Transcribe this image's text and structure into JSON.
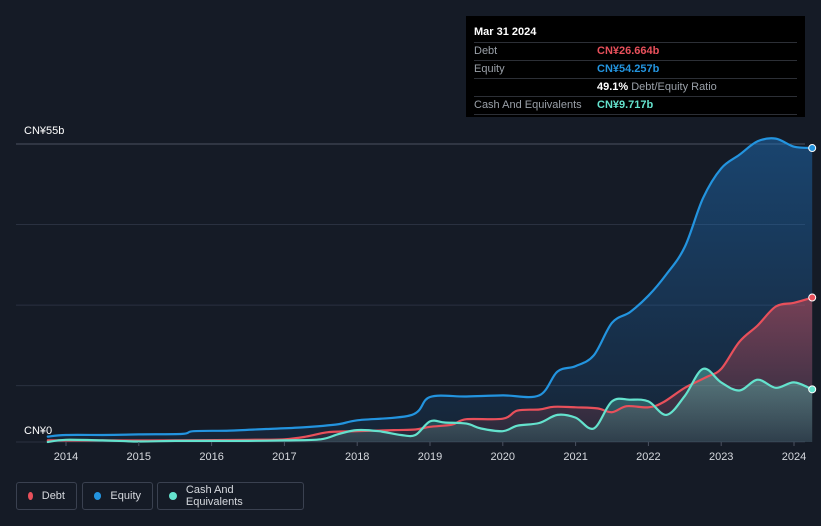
{
  "tooltip": {
    "date": "Mar 31 2024",
    "rows": {
      "debt": {
        "label": "Debt",
        "value": "CN¥26.664b"
      },
      "equity": {
        "label": "Equity",
        "value": "CN¥54.257b"
      },
      "ratio": {
        "value": "49.1%",
        "label": "Debt/Equity Ratio"
      },
      "cash": {
        "label": "Cash And Equivalents",
        "value": "CN¥9.717b"
      }
    }
  },
  "legend": {
    "debt": "Debt",
    "equity": "Equity",
    "cash": "Cash And Equivalents"
  },
  "colors": {
    "debt": "#e8505b",
    "equity": "#2394df",
    "cash": "#64e2cd",
    "background": "#151b26",
    "grid": "#2a3140"
  },
  "chart_data": {
    "type": "area",
    "ylim": [
      0,
      55
    ],
    "y_unit": "CN¥ billions",
    "y_tick_labels": [
      "CN¥0",
      "CN¥55b"
    ],
    "x_tick_labels": [
      "2014",
      "2015",
      "2016",
      "2017",
      "2018",
      "2019",
      "2020",
      "2021",
      "2022",
      "2023",
      "2024"
    ],
    "x_range": [
      2013.75,
      2024.25
    ],
    "series": [
      {
        "name": "Debt",
        "points": [
          [
            2013.75,
            0.3
          ],
          [
            2014.5,
            0.3
          ],
          [
            2015.5,
            0.3
          ],
          [
            2016.5,
            0.4
          ],
          [
            2017.0,
            0.5
          ],
          [
            2017.3,
            1.0
          ],
          [
            2017.6,
            1.8
          ],
          [
            2018.0,
            2.0
          ],
          [
            2018.5,
            2.2
          ],
          [
            2018.8,
            2.3
          ],
          [
            2019.0,
            2.8
          ],
          [
            2019.3,
            3.2
          ],
          [
            2019.5,
            4.2
          ],
          [
            2020.0,
            4.3
          ],
          [
            2020.2,
            5.8
          ],
          [
            2020.5,
            6.0
          ],
          [
            2020.7,
            6.5
          ],
          [
            2021.0,
            6.4
          ],
          [
            2021.3,
            6.2
          ],
          [
            2021.5,
            5.5
          ],
          [
            2021.7,
            6.6
          ],
          [
            2022.0,
            6.4
          ],
          [
            2022.2,
            7.3
          ],
          [
            2022.5,
            10.0
          ],
          [
            2022.8,
            12.0
          ],
          [
            2023.0,
            13.5
          ],
          [
            2023.25,
            18.5
          ],
          [
            2023.5,
            21.5
          ],
          [
            2023.75,
            25.0
          ],
          [
            2024.0,
            25.7
          ],
          [
            2024.25,
            26.664
          ]
        ]
      },
      {
        "name": "Equity",
        "points": [
          [
            2013.75,
            1.0
          ],
          [
            2014.0,
            1.3
          ],
          [
            2014.5,
            1.3
          ],
          [
            2015.0,
            1.4
          ],
          [
            2015.6,
            1.5
          ],
          [
            2015.75,
            2.0
          ],
          [
            2016.25,
            2.1
          ],
          [
            2016.75,
            2.4
          ],
          [
            2017.25,
            2.7
          ],
          [
            2017.75,
            3.3
          ],
          [
            2018.0,
            4.0
          ],
          [
            2018.75,
            5.0
          ],
          [
            2019.0,
            8.3
          ],
          [
            2019.5,
            8.4
          ],
          [
            2020.0,
            8.6
          ],
          [
            2020.5,
            8.6
          ],
          [
            2020.75,
            13.0
          ],
          [
            2021.0,
            14.0
          ],
          [
            2021.25,
            16.0
          ],
          [
            2021.5,
            22.0
          ],
          [
            2021.75,
            24.0
          ],
          [
            2022.0,
            27.0
          ],
          [
            2022.25,
            31.0
          ],
          [
            2022.5,
            36.0
          ],
          [
            2022.75,
            45.0
          ],
          [
            2023.0,
            50.5
          ],
          [
            2023.25,
            53.0
          ],
          [
            2023.5,
            55.5
          ],
          [
            2023.75,
            56.0
          ],
          [
            2024.0,
            54.5
          ],
          [
            2024.25,
            54.257
          ]
        ]
      },
      {
        "name": "Cash And Equivalents",
        "points": [
          [
            2013.75,
            0.0
          ],
          [
            2014.0,
            0.4
          ],
          [
            2014.5,
            0.3
          ],
          [
            2015.0,
            0.1
          ],
          [
            2015.5,
            0.2
          ],
          [
            2016.0,
            0.2
          ],
          [
            2016.5,
            0.2
          ],
          [
            2017.0,
            0.3
          ],
          [
            2017.5,
            0.5
          ],
          [
            2017.75,
            1.5
          ],
          [
            2018.0,
            2.2
          ],
          [
            2018.3,
            2.0
          ],
          [
            2018.6,
            1.3
          ],
          [
            2018.8,
            1.3
          ],
          [
            2019.0,
            3.8
          ],
          [
            2019.2,
            3.6
          ],
          [
            2019.5,
            3.4
          ],
          [
            2019.7,
            2.5
          ],
          [
            2020.0,
            2.0
          ],
          [
            2020.2,
            3.0
          ],
          [
            2020.5,
            3.5
          ],
          [
            2020.75,
            5.0
          ],
          [
            2021.0,
            4.5
          ],
          [
            2021.25,
            2.5
          ],
          [
            2021.5,
            7.5
          ],
          [
            2021.75,
            7.8
          ],
          [
            2022.0,
            7.5
          ],
          [
            2022.25,
            5.0
          ],
          [
            2022.5,
            8.5
          ],
          [
            2022.75,
            13.5
          ],
          [
            2023.0,
            11.0
          ],
          [
            2023.25,
            9.5
          ],
          [
            2023.5,
            11.5
          ],
          [
            2023.75,
            10.0
          ],
          [
            2024.0,
            11.0
          ],
          [
            2024.25,
            9.717
          ]
        ]
      }
    ]
  }
}
